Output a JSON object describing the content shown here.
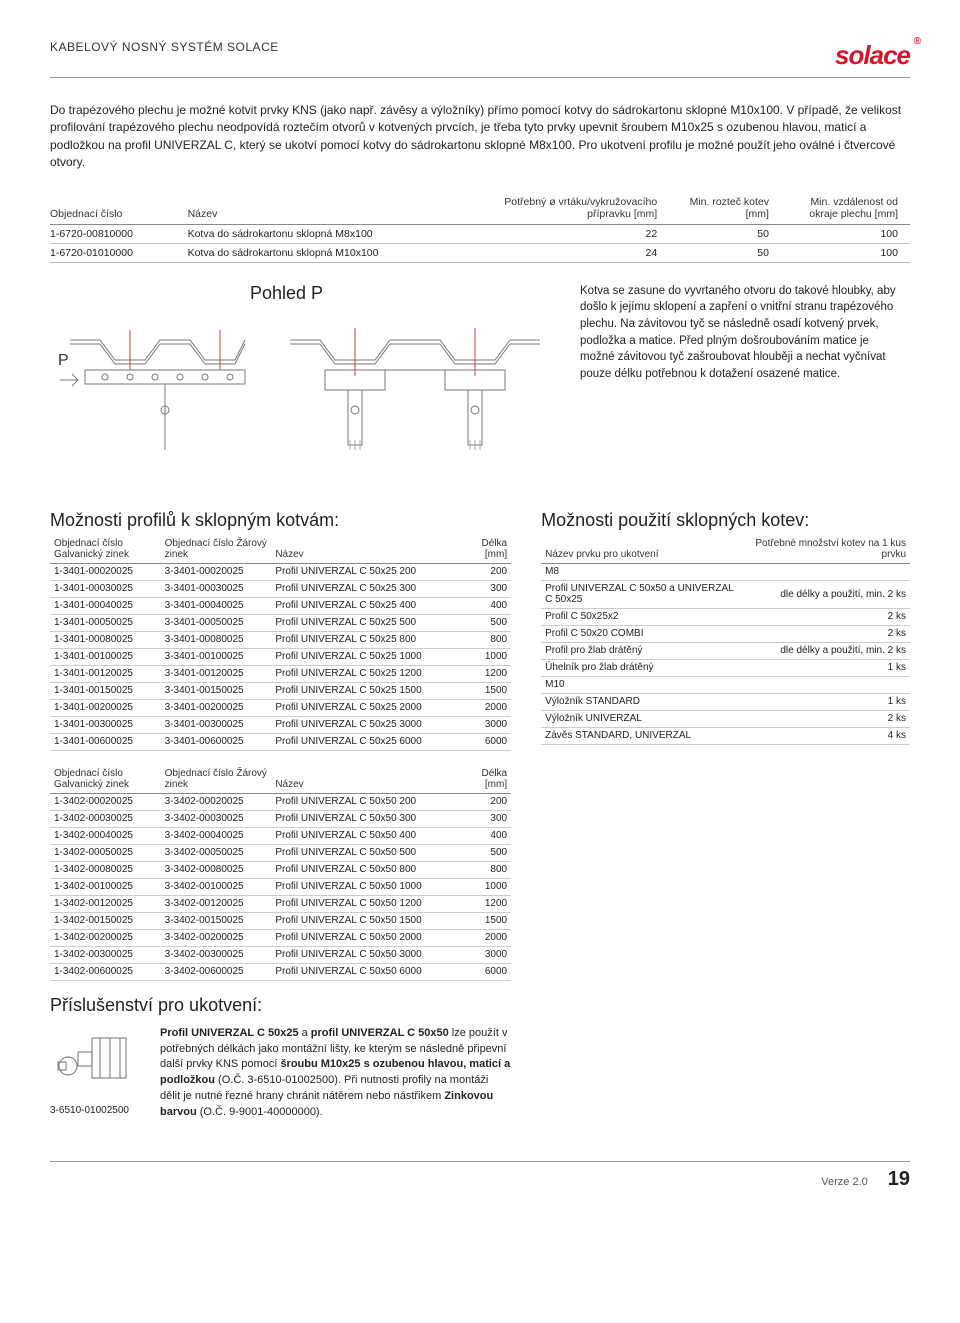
{
  "header": {
    "title": "KABELOVÝ NOSNÝ SYSTÉM SOLACE",
    "logo": "solace"
  },
  "intro": "Do trapézového plechu je možné kotvit prvky KNS (jako např. závěsy a výložníky) přímo pomocí kotvy do sádrokartonu sklopné M10x100. V případě, že velikost profilování trapézového plechu neodpovídá roztečím otvorů v kotvených prvcích, je třeba tyto prvky upevnit šroubem M10x25 s ozubenou hlavou, maticí a podložkou na profil UNIVERZAL C, který se ukotví pomocí kotvy do sádrokartonu sklopné M8x100. Pro ukotvení profilu je možné použít jeho oválné i čtvercové otvory.",
  "anchors": {
    "h_obj": "Objednací číslo",
    "h_nazev": "Název",
    "h_vrtak": "Potřebný ø vrtáku/vykružovacího přípravku [mm]",
    "h_roztec": "Min. rozteč kotev [mm]",
    "h_vzdal": "Min. vzdálenost od okraje plechu [mm]",
    "rows": [
      {
        "obj": "1-6720-00810000",
        "nazev": "Kotva do sádrokartonu sklopná M8x100",
        "vrtak": "22",
        "roztec": "50",
        "vzdal": "100"
      },
      {
        "obj": "1-6720-01010000",
        "nazev": "Kotva do sádrokartonu sklopná M10x100",
        "vrtak": "24",
        "roztec": "50",
        "vzdal": "100"
      }
    ]
  },
  "pohled": {
    "label_p": "P",
    "title": "Pohled P",
    "desc": "Kotva se zasune do vyvrtaného otvoru do takové hloubky, aby došlo k jejímu sklopení a zapření o vnitřní stranu trapézového plechu. Na závitovou tyč se následně osadí kotvený prvek, podložka a matice. Před plným došroubováním matice je možné závitovou tyč zašroubovat hlouběji a nechat vyčnívat pouze délku potřebnou k dotažení osazené matice."
  },
  "profiles": {
    "title": "Možnosti profilů k sklopným kotvám:",
    "h_galv": "Objednací číslo Galvanický zinek",
    "h_zar": "Objednací číslo Žárový zinek",
    "h_nazev": "Název",
    "h_delka": "Délka [mm]",
    "t1": [
      [
        "1-3401-00020025",
        "3-3401-00020025",
        "Profil UNIVERZAL C 50x25 200",
        "200"
      ],
      [
        "1-3401-00030025",
        "3-3401-00030025",
        "Profil UNIVERZAL C 50x25 300",
        "300"
      ],
      [
        "1-3401-00040025",
        "3-3401-00040025",
        "Profil UNIVERZAL C 50x25 400",
        "400"
      ],
      [
        "1-3401-00050025",
        "3-3401-00050025",
        "Profil UNIVERZAL C 50x25 500",
        "500"
      ],
      [
        "1-3401-00080025",
        "3-3401-00080025",
        "Profil UNIVERZAL C 50x25 800",
        "800"
      ],
      [
        "1-3401-00100025",
        "3-3401-00100025",
        "Profil UNIVERZAL C 50x25 1000",
        "1000"
      ],
      [
        "1-3401-00120025",
        "3-3401-00120025",
        "Profil UNIVERZAL C 50x25 1200",
        "1200"
      ],
      [
        "1-3401-00150025",
        "3-3401-00150025",
        "Profil UNIVERZAL C 50x25 1500",
        "1500"
      ],
      [
        "1-3401-00200025",
        "3-3401-00200025",
        "Profil UNIVERZAL C 50x25 2000",
        "2000"
      ],
      [
        "1-3401-00300025",
        "3-3401-00300025",
        "Profil UNIVERZAL C 50x25 3000",
        "3000"
      ],
      [
        "1-3401-00600025",
        "3-3401-00600025",
        "Profil UNIVERZAL C 50x25 6000",
        "6000"
      ]
    ],
    "t2": [
      [
        "1-3402-00020025",
        "3-3402-00020025",
        "Profil UNIVERZAL C 50x50 200",
        "200"
      ],
      [
        "1-3402-00030025",
        "3-3402-00030025",
        "Profil UNIVERZAL C 50x50 300",
        "300"
      ],
      [
        "1-3402-00040025",
        "3-3402-00040025",
        "Profil UNIVERZAL C 50x50 400",
        "400"
      ],
      [
        "1-3402-00050025",
        "3-3402-00050025",
        "Profil UNIVERZAL C 50x50 500",
        "500"
      ],
      [
        "1-3402-00080025",
        "3-3402-00080025",
        "Profil UNIVERZAL C 50x50 800",
        "800"
      ],
      [
        "1-3402-00100025",
        "3-3402-00100025",
        "Profil UNIVERZAL C 50x50 1000",
        "1000"
      ],
      [
        "1-3402-00120025",
        "3-3402-00120025",
        "Profil UNIVERZAL C 50x50 1200",
        "1200"
      ],
      [
        "1-3402-00150025",
        "3-3402-00150025",
        "Profil UNIVERZAL C 50x50 1500",
        "1500"
      ],
      [
        "1-3402-00200025",
        "3-3402-00200025",
        "Profil UNIVERZAL C 50x50 2000",
        "2000"
      ],
      [
        "1-3402-00300025",
        "3-3402-00300025",
        "Profil UNIVERZAL C 50x50 3000",
        "3000"
      ],
      [
        "1-3402-00600025",
        "3-3402-00600025",
        "Profil UNIVERZAL C 50x50 6000",
        "6000"
      ]
    ]
  },
  "usage": {
    "title": "Možnosti použití sklopných kotev:",
    "h_prvek": "Název prvku pro ukotvení",
    "h_mnozstvi": "Potřebné množství kotev na 1 kus prvku",
    "rows": [
      [
        "M8",
        ""
      ],
      [
        "Profil UNIVERZAL C 50x50 a UNIVERZAL C 50x25",
        "dle délky a použití, min. 2 ks"
      ],
      [
        "Profil C 50x25x2",
        "2 ks"
      ],
      [
        "Profil C 50x20 COMBI",
        "2 ks"
      ],
      [
        "Profil pro žlab drátěný",
        "dle délky a použití, min. 2 ks"
      ],
      [
        "Úhelník pro žlab drátěný",
        "1 ks"
      ],
      [
        "M10",
        ""
      ],
      [
        "Výložník STANDARD",
        "1 ks"
      ],
      [
        "Výložník UNIVERZAL",
        "2 ks"
      ],
      [
        "Závěs STANDARD, UNIVERZAL",
        "4 ks"
      ]
    ]
  },
  "accessory": {
    "title": "Příslušenství pro ukotvení:",
    "text_pre": "Profil UNIVERZAL C 50x25",
    "text_and": " a ",
    "text_pre2": "profil UNIVERZAL C 50x50",
    "text_mid": " lze použít v potřebných délkách jako montážní lišty, ke kterým se následně připevní další prvky KNS pomocí ",
    "text_bold": "šroubu M10x25 s ozubenou hlavou, maticí a podložkou",
    "text_oc": " (O.Č. 3-6510-01002500). Při nutnosti profily na montáži dělit je nutné řezné hrany chránit nátěrem nebo nástřikem ",
    "text_bold2": "Zinkovou barvou",
    "text_end": " (O.Č. 9-9001-40000000).",
    "code": "3-6510-01002500"
  },
  "footer": {
    "version": "Verze 2.0",
    "page": "19"
  }
}
